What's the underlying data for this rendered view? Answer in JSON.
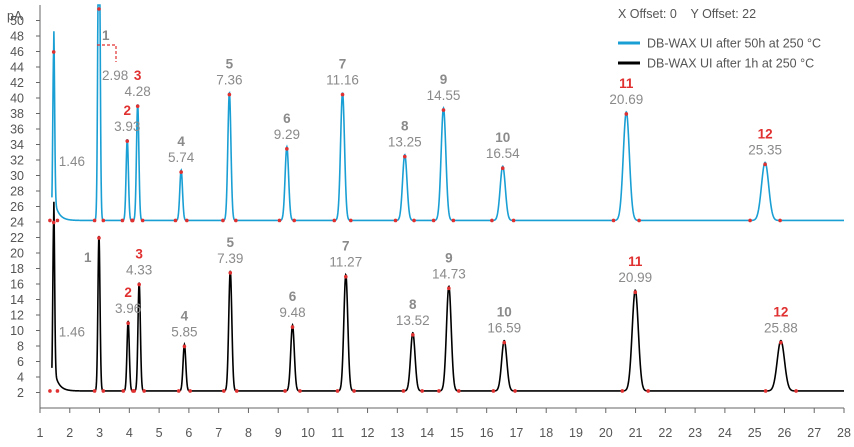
{
  "chart_data": {
    "type": "line",
    "title": "",
    "ylabel": "pA",
    "xlabel": "",
    "annotation": "X Offset: 0    Y Offset: 22",
    "x_ticks": [
      1,
      2,
      3,
      4,
      5,
      6,
      7,
      8,
      9,
      10,
      11,
      12,
      13,
      14,
      15,
      16,
      17,
      18,
      19,
      20,
      21,
      22,
      23,
      24,
      25,
      26,
      27,
      28
    ],
    "y_ticks": [
      2,
      4,
      6,
      8,
      10,
      12,
      14,
      16,
      18,
      20,
      22,
      24,
      26,
      28,
      30,
      32,
      34,
      36,
      38,
      40,
      42,
      44,
      46,
      48,
      50
    ],
    "xlim": [
      1,
      28
    ],
    "ylim": [
      0,
      52
    ],
    "y_offset": 22,
    "grid": false,
    "legend_position": "top-right",
    "colors": {
      "after_50h": "#1a9fd4",
      "after_1h": "#000000",
      "accent": "#e03030",
      "label_gray": "#8a8a8a"
    },
    "series": [
      {
        "name": "DB-WAX UI after 50h at 250 °C",
        "baseline": 2.2,
        "peaks": [
          {
            "label": "",
            "rt": 1.46,
            "height": 22
          },
          {
            "label": "1",
            "rt": 2.98,
            "height": 48
          },
          {
            "label": "2",
            "rt": 3.93,
            "height": 10.5
          },
          {
            "label": "3",
            "rt": 4.28,
            "height": 15
          },
          {
            "label": "4",
            "rt": 5.74,
            "height": 6.5
          },
          {
            "label": "5",
            "rt": 7.36,
            "height": 16.5
          },
          {
            "label": "6",
            "rt": 9.29,
            "height": 9.5
          },
          {
            "label": "7",
            "rt": 11.16,
            "height": 16.5
          },
          {
            "label": "8",
            "rt": 13.25,
            "height": 8.5
          },
          {
            "label": "9",
            "rt": 14.55,
            "height": 14.5
          },
          {
            "label": "10",
            "rt": 16.54,
            "height": 7
          },
          {
            "label": "11",
            "rt": 20.69,
            "height": 14
          },
          {
            "label": "12",
            "rt": 25.35,
            "height": 7.5
          }
        ]
      },
      {
        "name": "DB-WAX UI after 1h at 250 °C",
        "baseline": 2.2,
        "peaks": [
          {
            "label": "",
            "rt": 1.46,
            "height": 22
          },
          {
            "label": "1",
            "rt": 2.98,
            "height": 20
          },
          {
            "label": "2",
            "rt": 3.96,
            "height": 9
          },
          {
            "label": "3",
            "rt": 4.33,
            "height": 14
          },
          {
            "label": "4",
            "rt": 5.85,
            "height": 6
          },
          {
            "label": "5",
            "rt": 7.39,
            "height": 15.5
          },
          {
            "label": "6",
            "rt": 9.48,
            "height": 8.5
          },
          {
            "label": "7",
            "rt": 11.27,
            "height": 15
          },
          {
            "label": "8",
            "rt": 13.52,
            "height": 7.5
          },
          {
            "label": "9",
            "rt": 14.73,
            "height": 13.5
          },
          {
            "label": "10",
            "rt": 16.59,
            "height": 6.5
          },
          {
            "label": "11",
            "rt": 20.99,
            "height": 13
          },
          {
            "label": "12",
            "rt": 25.88,
            "height": 6.5
          }
        ]
      }
    ]
  }
}
